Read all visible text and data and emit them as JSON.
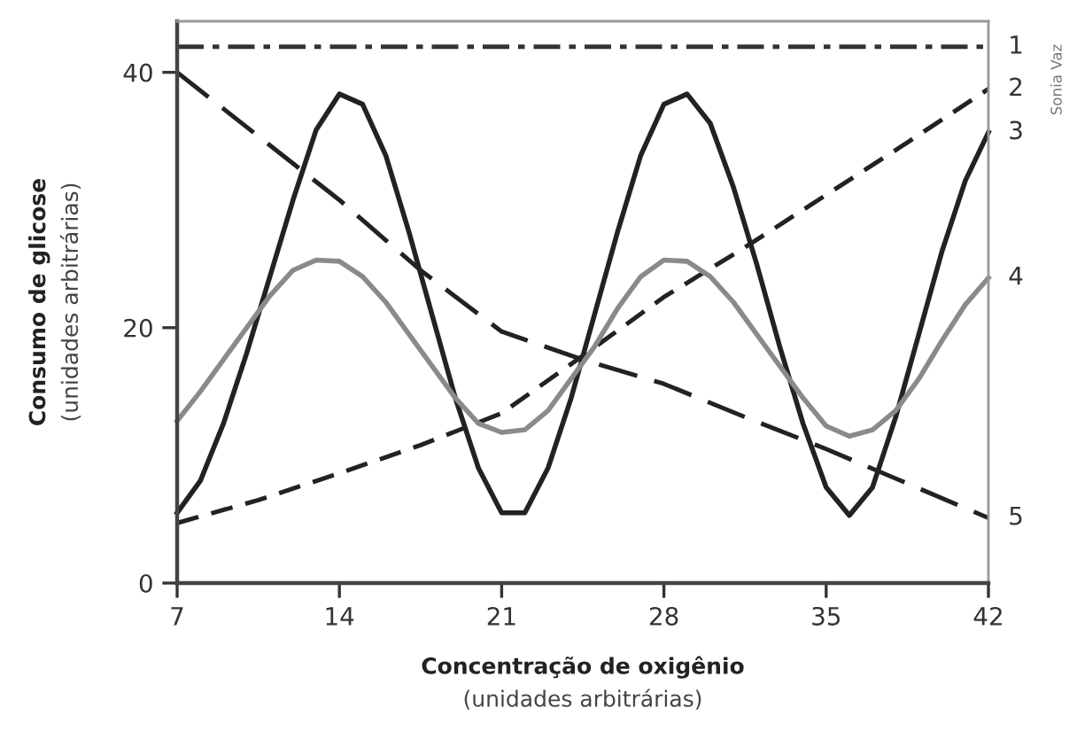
{
  "chart_data": {
    "type": "line",
    "xlabel": "Concentração de oxigênio\n(unidades arbitrárias)",
    "ylabel": "Consumo de glicose\n(unidades arbitrárias)",
    "xlim": [
      7,
      42
    ],
    "xticks": [
      7,
      14,
      21,
      28,
      35,
      42
    ],
    "ylim": [
      0,
      44
    ],
    "yticks": [
      0,
      20,
      40
    ],
    "grid": false,
    "legend": false,
    "marker": "none",
    "annotations": [
      "Sonia Vaz"
    ],
    "series": [
      {
        "name": "1",
        "color": "#333333",
        "line_style": "dashdot",
        "x": [
          7,
          42
        ],
        "values": [
          42,
          42
        ]
      },
      {
        "name": "2",
        "color": "#222222",
        "line_style": "dashed",
        "x": [
          7,
          10.5,
          14,
          17.5,
          21,
          24.5,
          28,
          31.5,
          35,
          38.5,
          42
        ],
        "values": [
          4.7,
          6.5,
          8.6,
          10.8,
          13.3,
          17.8,
          22.4,
          26.3,
          30.4,
          34.5,
          38.7
        ]
      },
      {
        "name": "3",
        "color": "#222222",
        "line_style": "solid",
        "x": [
          7,
          8,
          9,
          10,
          11,
          12,
          13,
          14,
          15,
          16,
          17,
          18,
          19,
          20,
          21,
          22,
          23,
          24,
          25,
          26,
          27,
          28,
          29,
          30,
          31,
          32,
          33,
          34,
          35,
          36,
          37,
          38,
          39,
          40,
          41,
          42
        ],
        "values": [
          5.5,
          8,
          12.5,
          18,
          24,
          30,
          35.5,
          38.3,
          37.5,
          33.5,
          27.5,
          21,
          14.5,
          9,
          5.5,
          5.5,
          9,
          14.5,
          21,
          27.5,
          33.5,
          37.5,
          38.3,
          36,
          31,
          25,
          18.5,
          12.5,
          7.5,
          5.3,
          7.5,
          13,
          19.5,
          26,
          31.5,
          35.3
        ]
      },
      {
        "name": "4",
        "color": "#8a8a8a",
        "line_style": "solid",
        "x": [
          7,
          8,
          9,
          10,
          11,
          12,
          13,
          14,
          15,
          16,
          17,
          18,
          19,
          20,
          21,
          22,
          23,
          24,
          25,
          26,
          27,
          28,
          29,
          30,
          31,
          32,
          33,
          34,
          35,
          36,
          37,
          38,
          39,
          40,
          41,
          42
        ],
        "values": [
          12.7,
          15,
          17.5,
          20,
          22.5,
          24.5,
          25.3,
          25.2,
          24,
          22,
          19.5,
          17,
          14.5,
          12.5,
          11.8,
          12,
          13.5,
          16,
          18.5,
          21.5,
          24,
          25.3,
          25.2,
          24,
          22,
          19.5,
          17,
          14.5,
          12.3,
          11.5,
          12,
          13.5,
          16,
          19,
          21.8,
          23.9
        ]
      },
      {
        "name": "5",
        "color": "#222222",
        "line_style": "longdash",
        "x": [
          7,
          10.5,
          14,
          17.5,
          21,
          24.5,
          28,
          31.5,
          35,
          38.5,
          42
        ],
        "values": [
          40,
          35,
          30,
          24.5,
          19.7,
          17.5,
          15.6,
          13,
          10.5,
          7.8,
          5.1
        ]
      }
    ]
  }
}
